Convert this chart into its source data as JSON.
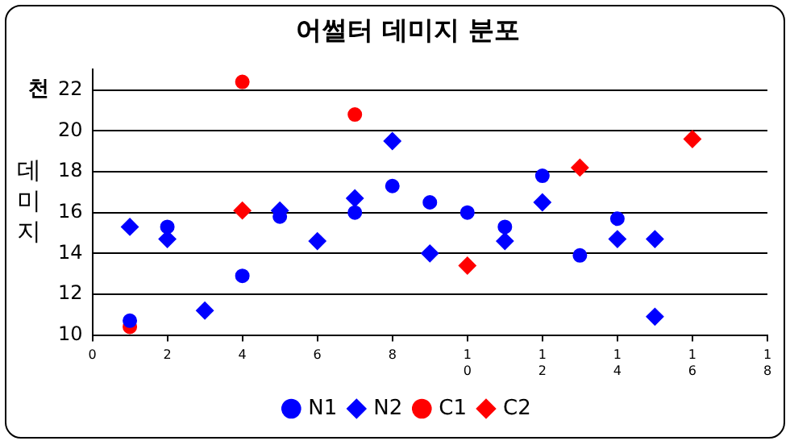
{
  "chart_data": {
    "type": "scatter",
    "title": "어썰터 데미지 분포",
    "ylabel": "데미지",
    "annotations": [
      "천"
    ],
    "xlim": [
      0,
      18
    ],
    "xticks": [
      0,
      2,
      4,
      6,
      8,
      10,
      12,
      14,
      16,
      18
    ],
    "ylim": [
      10,
      23
    ],
    "yticks": [
      10,
      12,
      14,
      16,
      18,
      20,
      22
    ],
    "grid": "y",
    "legend": "bottom",
    "series": [
      {
        "name": "N1",
        "color": "#0000ff",
        "marker": "circle",
        "x": [
          1,
          2,
          4,
          5,
          7,
          8,
          9,
          10,
          11,
          12,
          13,
          14
        ],
        "values": [
          10.7,
          15.3,
          12.9,
          15.8,
          16.0,
          17.3,
          16.5,
          16.0,
          15.3,
          17.8,
          13.9,
          15.7
        ]
      },
      {
        "name": "N2",
        "color": "#0000ff",
        "marker": "diamond",
        "x": [
          1,
          2,
          3,
          5,
          6,
          7,
          8,
          9,
          11,
          12,
          14,
          15,
          15
        ],
        "values": [
          15.3,
          14.7,
          11.2,
          16.1,
          14.6,
          16.7,
          19.5,
          14.0,
          14.6,
          16.5,
          14.7,
          14.7,
          10.9
        ]
      },
      {
        "name": "C1",
        "color": "#ff0000",
        "marker": "circle",
        "x": [
          1,
          4,
          7
        ],
        "values": [
          10.4,
          22.4,
          20.8
        ]
      },
      {
        "name": "C2",
        "color": "#ff0000",
        "marker": "diamond",
        "x": [
          4,
          10,
          13,
          16
        ],
        "values": [
          16.1,
          13.4,
          18.2,
          19.6
        ]
      }
    ]
  }
}
